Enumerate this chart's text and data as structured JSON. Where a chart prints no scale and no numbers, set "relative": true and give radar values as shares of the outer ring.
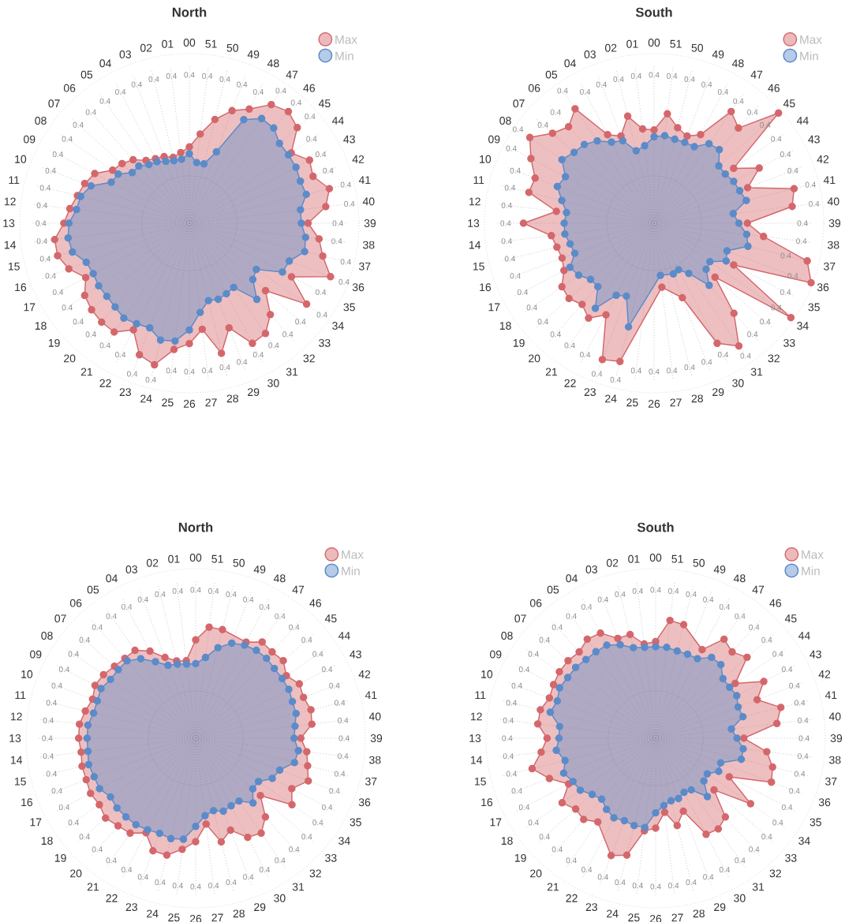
{
  "chart_data": [
    {
      "type": "radar",
      "title": "North",
      "relative": true,
      "grid": true,
      "legend": "top right",
      "marker": "circle",
      "annotations": [
        "0.4"
      ],
      "categories": [
        "00",
        "51",
        "50",
        "49",
        "48",
        "47",
        "46",
        "45",
        "44",
        "43",
        "42",
        "41",
        "40",
        "39",
        "38",
        "37",
        "36",
        "35",
        "34",
        "33",
        "32",
        "31",
        "30",
        "29",
        "28",
        "27",
        "26",
        "25",
        "24",
        "23",
        "22",
        "21",
        "20",
        "19",
        "18",
        "17",
        "16",
        "15",
        "14",
        "13",
        "12",
        "11",
        "10",
        "09",
        "08",
        "07",
        "06",
        "05",
        "04",
        "03",
        "02",
        "01"
      ],
      "series": [
        {
          "name": "Max",
          "color": "#d4676b",
          "values": [
            0.45,
            0.53,
            0.63,
            0.71,
            0.76,
            0.85,
            0.88,
            0.85,
            0.73,
            0.8,
            0.78,
            0.85,
            0.81,
            0.7,
            0.77,
            0.81,
            0.89,
            0.68,
            0.84,
            0.6,
            0.72,
            0.79,
            0.8,
            0.66,
            0.79,
            0.63,
            0.71,
            0.75,
            0.86,
            0.83,
            0.71,
            0.78,
            0.78,
            0.77,
            0.75,
            0.69,
            0.76,
            0.8,
            0.8,
            0.74,
            0.71,
            0.68,
            0.66,
            0.63,
            0.55,
            0.53,
            0.5,
            0.45,
            0.43,
            0.42,
            0.4,
            0.42
          ]
        },
        {
          "name": "Min",
          "color": "#5b8bc9",
          "values": [
            0.41,
            0.36,
            0.36,
            0.45,
            0.69,
            0.75,
            0.75,
            0.71,
            0.71,
            0.71,
            0.7,
            0.71,
            0.66,
            0.66,
            0.69,
            0.7,
            0.63,
            0.62,
            0.48,
            0.5,
            0.6,
            0.46,
            0.47,
            0.48,
            0.47,
            0.53,
            0.63,
            0.7,
            0.71,
            0.66,
            0.67,
            0.68,
            0.66,
            0.65,
            0.65,
            0.64,
            0.65,
            0.71,
            0.72,
            0.71,
            0.67,
            0.66,
            0.62,
            0.52,
            0.51,
            0.45,
            0.45,
            0.42,
            0.41,
            0.39,
            0.38,
            0.38
          ]
        }
      ]
    },
    {
      "type": "radar",
      "title": "South",
      "relative": true,
      "grid": true,
      "legend": "top right",
      "marker": "circle",
      "annotations": [
        "0.4"
      ],
      "categories": [
        "00",
        "51",
        "50",
        "49",
        "48",
        "47",
        "46",
        "45",
        "44",
        "43",
        "42",
        "41",
        "40",
        "39",
        "38",
        "37",
        "36",
        "35",
        "34",
        "33",
        "32",
        "31",
        "30",
        "29",
        "28",
        "27",
        "26",
        "25",
        "24",
        "23",
        "22",
        "21",
        "20",
        "19",
        "18",
        "17",
        "16",
        "15",
        "14",
        "13",
        "12",
        "11",
        "10",
        "09",
        "08",
        "07",
        "06",
        "05",
        "04",
        "03",
        "02",
        "01"
      ],
      "series": [
        {
          "name": "Max",
          "color": "#d4676b",
          "values": [
            0.55,
            0.65,
            0.58,
            0.55,
            0.59,
            0.8,
            0.75,
            0.98,
            0.57,
            0.7,
            0.59,
            0.85,
            0.82,
            0.55,
            0.65,
            0.93,
            0.99,
            0.53,
            0.98,
            0.48,
            0.71,
            0.88,
            0.8,
            0.47,
            null,
            0.38,
            null,
            null,
            0.84,
            0.86,
            0.61,
            0.68,
            0.64,
            0.67,
            0.66,
            0.6,
            0.58,
            0.59,
            0.61,
            0.77,
            0.58,
            0.76,
            0.75,
            0.82,
            0.89,
            0.8,
            0.76,
            0.82,
            0.59,
            0.55,
            0.65,
            0.56
          ]
        },
        {
          "name": "Min",
          "color": "#5b8bc9",
          "values": [
            0.51,
            0.52,
            0.51,
            0.51,
            0.51,
            0.57,
            0.58,
            0.51,
            0.51,
            0.53,
            0.54,
            0.56,
            0.47,
            0.5,
            0.55,
            0.57,
            0.46,
            0.48,
            0.4,
            0.41,
            0.49,
            0.36,
            0.31,
            0.32,
            null,
            0.31,
            null,
            null,
            0.63,
            0.46,
            0.48,
            0.61,
            0.5,
            0.5,
            0.54,
            0.56,
            0.5,
            0.51,
            0.53,
            0.53,
            0.52,
            0.56,
            0.61,
            0.59,
            0.66,
            0.63,
            0.62,
            0.59,
            0.54,
            0.52,
            0.44,
            0.46
          ]
        }
      ]
    },
    {
      "type": "radar",
      "title": "North",
      "relative": true,
      "grid": true,
      "legend": "top right",
      "marker": "circle",
      "annotations": [
        "0.4"
      ],
      "categories": [
        "00",
        "51",
        "50",
        "49",
        "48",
        "47",
        "46",
        "45",
        "44",
        "43",
        "42",
        "41",
        "40",
        "39",
        "38",
        "37",
        "36",
        "35",
        "34",
        "33",
        "32",
        "31",
        "30",
        "29",
        "28",
        "27",
        "26",
        "25",
        "24",
        "23",
        "22",
        "21",
        "20",
        "19",
        "18",
        "17",
        "16",
        "15",
        "14",
        "13",
        "12",
        "11",
        "10",
        "09",
        "08",
        "07",
        "06",
        "05",
        "04",
        "03",
        "02",
        "01"
      ],
      "series": [
        {
          "name": "Max",
          "color": "#d4676b",
          "values": [
            0.58,
            0.66,
            0.66,
            null,
            0.64,
            0.69,
            0.68,
            0.69,
            0.65,
            0.69,
            0.68,
            0.7,
            0.69,
            0.62,
            0.66,
            0.68,
            0.71,
            0.64,
            0.69,
            0.51,
            0.62,
            0.68,
            0.66,
            0.58,
            0.63,
            0.51,
            0.61,
            0.66,
            0.71,
            0.71,
            0.63,
            0.68,
            0.69,
            0.71,
            0.69,
            0.7,
            0.69,
            0.69,
            0.68,
            0.69,
            0.69,
            0.67,
            0.65,
            0.67,
            0.66,
            0.64,
            0.63,
            0.63,
            0.58,
            0.51,
            0.47,
            0.46
          ]
        },
        {
          "name": "Min",
          "color": "#5b8bc9",
          "values": [
            0.44,
            0.48,
            0.55,
            0.6,
            0.62,
            0.63,
            0.63,
            0.62,
            0.62,
            0.62,
            0.61,
            0.61,
            0.59,
            0.58,
            0.61,
            0.6,
            0.53,
            0.51,
            0.45,
            0.45,
            0.51,
            0.45,
            0.45,
            0.46,
            0.44,
            0.46,
            0.52,
            0.6,
            0.61,
            0.6,
            0.61,
            0.62,
            0.62,
            0.62,
            0.61,
            0.64,
            0.64,
            0.65,
            0.64,
            0.64,
            0.64,
            0.62,
            0.62,
            0.63,
            0.61,
            0.61,
            0.61,
            0.57,
            0.51,
            0.46,
            0.45,
            0.44
          ]
        }
      ]
    },
    {
      "type": "radar",
      "title": "South",
      "relative": true,
      "grid": true,
      "legend": "top right",
      "marker": "circle",
      "annotations": [
        "0.4"
      ],
      "categories": [
        "00",
        "51",
        "50",
        "49",
        "48",
        "47",
        "46",
        "45",
        "44",
        "43",
        "42",
        "41",
        "40",
        "39",
        "38",
        "37",
        "36",
        "35",
        "34",
        "33",
        "32",
        "31",
        "30",
        "29",
        "28",
        "27",
        "26",
        "25",
        "24",
        "23",
        "22",
        "21",
        "20",
        "19",
        "18",
        "17",
        "16",
        "15",
        "14",
        "13",
        "12",
        "11",
        "10",
        "09",
        "08",
        "07",
        "06",
        "05",
        "04",
        "03",
        "02",
        "01"
      ],
      "series": [
        {
          "name": "Max",
          "color": "#d4676b",
          "values": [
            0.57,
            0.7,
            0.69,
            null,
            0.59,
            0.71,
            0.68,
            0.72,
            0.57,
            0.72,
            0.64,
            0.76,
            0.72,
            0.52,
            0.66,
            0.71,
            0.73,
            0.49,
            0.68,
            0.46,
            0.62,
            0.65,
            0.64,
            0.46,
            0.53,
            0.44,
            0.53,
            0.55,
            0.71,
            0.74,
            null,
            0.6,
            0.64,
            0.63,
            0.67,
            0.58,
            0.67,
            0.75,
            0.68,
            0.64,
            0.7,
            0.7,
            0.67,
            0.68,
            0.69,
            0.69,
            0.68,
            0.71,
            0.7,
            0.63,
            0.63,
            0.56
          ]
        },
        {
          "name": "Min",
          "color": "#5b8bc9",
          "values": [
            0.54,
            0.54,
            0.53,
            0.53,
            0.53,
            0.58,
            0.58,
            0.53,
            0.53,
            0.54,
            0.52,
            0.53,
            0.45,
            0.48,
            0.52,
            0.52,
            0.41,
            0.42,
            0.37,
            0.38,
            0.46,
            0.37,
            0.36,
            0.38,
            0.38,
            0.4,
            0.44,
            0.53,
            0.53,
            0.52,
            0.53,
            0.51,
            0.48,
            0.5,
            0.54,
            0.55,
            0.58,
            0.55,
            0.59,
            0.57,
            0.57,
            0.64,
            0.62,
            0.64,
            0.63,
            0.63,
            0.62,
            0.62,
            0.62,
            0.59,
            0.55,
            0.54
          ]
        }
      ]
    }
  ]
}
